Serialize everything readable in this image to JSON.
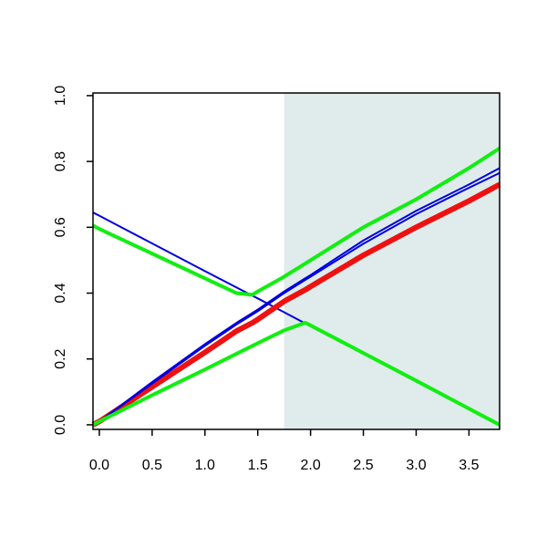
{
  "chart_data": {
    "type": "line",
    "x": [
      -0.06,
      0,
      0.5,
      1.0,
      1.3,
      1.45,
      1.5,
      1.75,
      1.95,
      2.0,
      2.5,
      3.0,
      3.5,
      3.79
    ],
    "series": [
      {
        "color": "#0000dd",
        "width": 2,
        "values": [
          0.645,
          0.635,
          0.551,
          0.467,
          0.417,
          0.392,
          0.384,
          0.342,
          0.308,
          0.3,
          0.216,
          0.133,
          0.049,
          0.0
        ]
      },
      {
        "color": "#ee1111",
        "width": 6,
        "values": [
          0.0,
          0.01,
          0.115,
          0.22,
          0.285,
          0.31,
          0.32,
          0.375,
          0.41,
          0.42,
          0.515,
          0.6,
          0.68,
          0.73
        ]
      },
      {
        "color": "#0000dd",
        "width": 2,
        "values": [
          0.0,
          0.01,
          0.13,
          0.245,
          0.31,
          0.34,
          0.35,
          0.405,
          0.445,
          0.455,
          0.56,
          0.65,
          0.73,
          0.78
        ]
      },
      {
        "color": "#0000dd",
        "width": 2,
        "values": [
          0.0,
          0.01,
          0.125,
          0.24,
          0.305,
          0.335,
          0.345,
          0.4,
          0.44,
          0.45,
          0.55,
          0.64,
          0.72,
          0.765
        ]
      },
      {
        "color": "#11ee11",
        "width": 4,
        "values": [
          0.605,
          0.595,
          0.52,
          0.445,
          0.4,
          0.395,
          0.405,
          0.45,
          0.49,
          0.5,
          0.6,
          0.685,
          0.78,
          0.84
        ]
      },
      {
        "color": "#11ee11",
        "width": 4,
        "values": [
          0.0,
          0.01,
          0.09,
          0.168,
          0.216,
          0.24,
          0.248,
          0.287,
          0.31,
          0.302,
          0.218,
          0.134,
          0.049,
          0.0
        ]
      }
    ],
    "shade": {
      "xmin": 1.75,
      "color": "#dfeceb"
    },
    "xlim": [
      -0.06,
      3.79
    ],
    "ylim": [
      -0.014,
      1.008
    ],
    "xticks": [
      {
        "value": 0,
        "label": "0.0"
      },
      0.5,
      {
        "value": 1,
        "label": "1.0"
      },
      1.5,
      {
        "value": 2,
        "label": "2.0"
      },
      2.5,
      {
        "value": 3,
        "label": "3.0"
      },
      3.5
    ],
    "yticks": [
      {
        "value": 0,
        "label": "0.0"
      },
      0.2,
      0.4,
      0.6,
      0.8,
      {
        "value": 1,
        "label": "1.0"
      }
    ]
  }
}
